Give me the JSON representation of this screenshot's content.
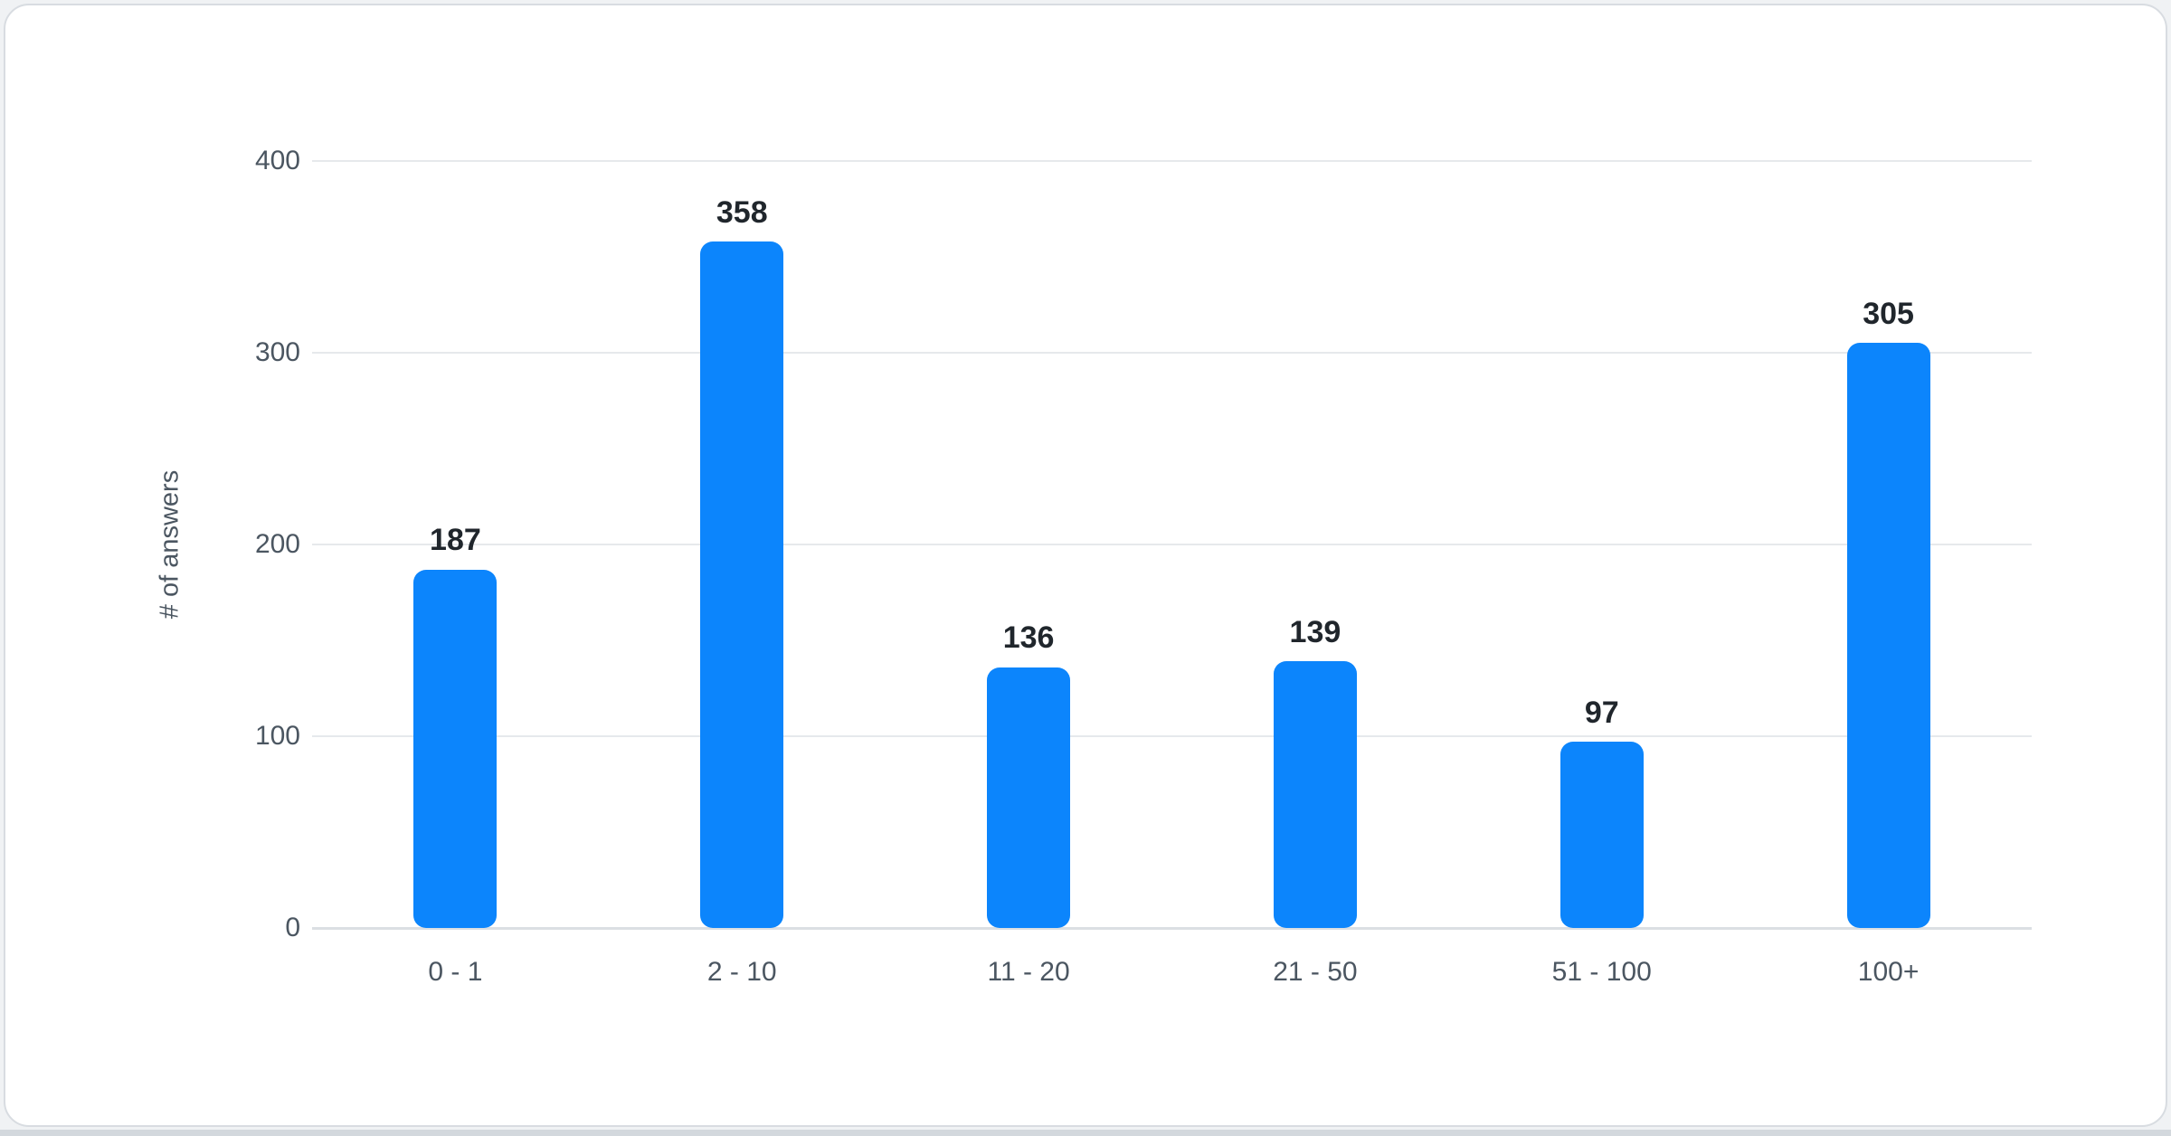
{
  "chart_data": {
    "type": "bar",
    "title": "",
    "xlabel": "",
    "ylabel": "# of answers",
    "categories": [
      "0 - 1",
      "2 - 10",
      "11 - 20",
      "21 - 50",
      "51 - 100",
      "100+"
    ],
    "values": [
      187,
      358,
      136,
      139,
      97,
      305
    ],
    "value_labels": [
      "187",
      "358",
      "136",
      "139",
      "97",
      "305"
    ],
    "ylim": [
      0,
      400
    ],
    "ytick_labels_top_to_bottom": [
      "400",
      "300",
      "200",
      "100",
      "0"
    ],
    "grid": "horizontal gridlines on",
    "legend_position": "none",
    "colors": {
      "bar_color": "#0c85fc",
      "value_label": "#20262c",
      "axis_text": "#4b5661",
      "gridline": "#e6e9ec",
      "baseline": "#dbdfe3",
      "card_bg": "#ffffff",
      "card_border": "#d8dce1",
      "page_bg": "#f0f2f4",
      "page_edge": "#d3d8dd"
    }
  }
}
